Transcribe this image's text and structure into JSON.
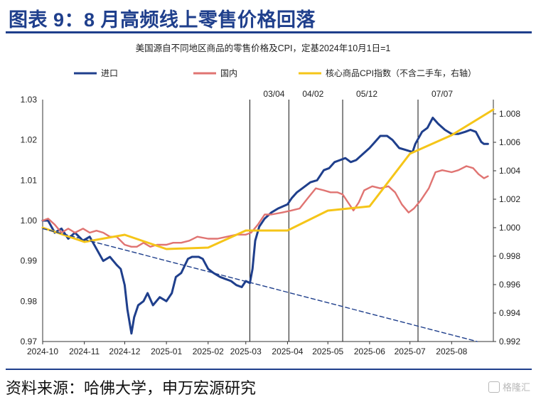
{
  "header": {
    "title": "图表 9：8 月高频线上零售价格回落"
  },
  "footer": {
    "source": "资料来源：哈佛大学，申万宏源研究",
    "watermark": "格隆汇"
  },
  "colors": {
    "accent": "#1f3f8c",
    "import": "#1f3f8c",
    "domestic": "#e07472",
    "cpi": "#f5c518",
    "trend": "#1f3f8c"
  },
  "chart_data": {
    "type": "line",
    "title": "美国源自不同地区商品的零售价格及CPI，定基2024年10月1日=1",
    "x_ticks": [
      "2024-10",
      "2024-11",
      "2024-12",
      "2025-01",
      "2025-02",
      "2025-03",
      "2025-04",
      "2025-05",
      "2025-06",
      "2025-07",
      "2025-08"
    ],
    "y_left": {
      "range": [
        0.97,
        1.03
      ],
      "ticks": [
        "0.97",
        "0.98",
        "0.99",
        "1.00",
        "1.01",
        "1.02",
        "1.03"
      ]
    },
    "y_right": {
      "range": [
        0.992,
        1.009
      ],
      "ticks": [
        "0.992",
        "0.994",
        "0.996",
        "0.998",
        "1.000",
        "1.002",
        "1.004",
        "1.006",
        "1.008"
      ]
    },
    "legend_position": "top",
    "vlines": [
      {
        "date": "2025-03-04",
        "label": "03/04"
      },
      {
        "date": "2025-04-02",
        "label": "04/02"
      },
      {
        "date": "2025-05-12",
        "label": "05/12"
      },
      {
        "date": "2025-07-07",
        "label": "07/07"
      }
    ],
    "series": [
      {
        "name": "进口",
        "axis": "left",
        "color": "#1f3f8c",
        "points": [
          [
            "2024-10-01",
            1.0
          ],
          [
            "2024-10-05",
            1.0
          ],
          [
            "2024-10-10",
            0.997
          ],
          [
            "2024-10-15",
            0.998
          ],
          [
            "2024-10-20",
            0.9955
          ],
          [
            "2024-10-25",
            0.997
          ],
          [
            "2024-10-31",
            0.995
          ],
          [
            "2024-11-05",
            0.996
          ],
          [
            "2024-11-10",
            0.993
          ],
          [
            "2024-11-15",
            0.99
          ],
          [
            "2024-11-20",
            0.991
          ],
          [
            "2024-11-25",
            0.989
          ],
          [
            "2024-11-28",
            0.988
          ],
          [
            "2024-12-01",
            0.984
          ],
          [
            "2024-12-03",
            0.978
          ],
          [
            "2024-12-06",
            0.972
          ],
          [
            "2024-12-08",
            0.976
          ],
          [
            "2024-12-11",
            0.979
          ],
          [
            "2024-12-15",
            0.98
          ],
          [
            "2024-12-18",
            0.982
          ],
          [
            "2024-12-22",
            0.979
          ],
          [
            "2024-12-27",
            0.981
          ],
          [
            "2025-01-01",
            0.98
          ],
          [
            "2025-01-05",
            0.982
          ],
          [
            "2025-01-08",
            0.986
          ],
          [
            "2025-01-12",
            0.987
          ],
          [
            "2025-01-17",
            0.9905
          ],
          [
            "2025-01-20",
            0.991
          ],
          [
            "2025-01-25",
            0.991
          ],
          [
            "2025-01-28",
            0.9905
          ],
          [
            "2025-02-01",
            0.988
          ],
          [
            "2025-02-05",
            0.987
          ],
          [
            "2025-02-10",
            0.986
          ],
          [
            "2025-02-14",
            0.9855
          ],
          [
            "2025-02-18",
            0.985
          ],
          [
            "2025-02-22",
            0.984
          ],
          [
            "2025-02-26",
            0.9835
          ],
          [
            "2025-03-01",
            0.985
          ],
          [
            "2025-03-04",
            0.9845
          ],
          [
            "2025-03-06",
            0.988
          ],
          [
            "2025-03-08",
            0.995
          ],
          [
            "2025-03-11",
            0.9985
          ],
          [
            "2025-03-15",
            1.0005
          ],
          [
            "2025-03-20",
            1.002
          ],
          [
            "2025-03-25",
            1.003
          ],
          [
            "2025-04-01",
            1.004
          ],
          [
            "2025-04-04",
            1.0055
          ],
          [
            "2025-04-08",
            1.007
          ],
          [
            "2025-04-12",
            1.008
          ],
          [
            "2025-04-18",
            1.0095
          ],
          [
            "2025-04-23",
            1.01
          ],
          [
            "2025-04-28",
            1.0125
          ],
          [
            "2025-05-02",
            1.013
          ],
          [
            "2025-05-06",
            1.0145
          ],
          [
            "2025-05-10",
            1.015
          ],
          [
            "2025-05-14",
            1.0155
          ],
          [
            "2025-05-18",
            1.0145
          ],
          [
            "2025-05-22",
            1.015
          ],
          [
            "2025-05-27",
            1.0165
          ],
          [
            "2025-06-01",
            1.018
          ],
          [
            "2025-06-05",
            1.0195
          ],
          [
            "2025-06-09",
            1.021
          ],
          [
            "2025-06-14",
            1.021
          ],
          [
            "2025-06-18",
            1.02
          ],
          [
            "2025-06-23",
            1.018
          ],
          [
            "2025-06-28",
            1.0175
          ],
          [
            "2025-07-03",
            1.017
          ],
          [
            "2025-07-05",
            1.019
          ],
          [
            "2025-07-10",
            1.022
          ],
          [
            "2025-07-14",
            1.023
          ],
          [
            "2025-07-18",
            1.0255
          ],
          [
            "2025-07-22",
            1.024
          ],
          [
            "2025-07-27",
            1.0225
          ],
          [
            "2025-08-01",
            1.0215
          ],
          [
            "2025-08-06",
            1.0215
          ],
          [
            "2025-08-11",
            1.022
          ],
          [
            "2025-08-15",
            1.0225
          ],
          [
            "2025-08-19",
            1.022
          ],
          [
            "2025-08-23",
            1.0195
          ],
          [
            "2025-08-25",
            1.019
          ],
          [
            "2025-08-28",
            1.019
          ]
        ]
      },
      {
        "name": "国内",
        "axis": "left",
        "color": "#e07472",
        "points": [
          [
            "2024-10-01",
            1.0
          ],
          [
            "2024-10-05",
            1.0005
          ],
          [
            "2024-10-10",
            0.999
          ],
          [
            "2024-10-15",
            0.997
          ],
          [
            "2024-10-20",
            0.998
          ],
          [
            "2024-10-25",
            0.997
          ],
          [
            "2024-10-31",
            0.998
          ],
          [
            "2024-11-05",
            0.997
          ],
          [
            "2024-11-10",
            0.9975
          ],
          [
            "2024-11-15",
            0.997
          ],
          [
            "2024-11-20",
            0.996
          ],
          [
            "2024-11-25",
            0.996
          ],
          [
            "2024-12-01",
            0.994
          ],
          [
            "2024-12-06",
            0.9935
          ],
          [
            "2024-12-10",
            0.9935
          ],
          [
            "2024-12-15",
            0.9945
          ],
          [
            "2024-12-20",
            0.9935
          ],
          [
            "2024-12-25",
            0.994
          ],
          [
            "2025-01-01",
            0.994
          ],
          [
            "2025-01-06",
            0.9945
          ],
          [
            "2025-01-12",
            0.9945
          ],
          [
            "2025-01-18",
            0.995
          ],
          [
            "2025-01-24",
            0.996
          ],
          [
            "2025-02-01",
            0.9955
          ],
          [
            "2025-02-08",
            0.9955
          ],
          [
            "2025-02-15",
            0.996
          ],
          [
            "2025-02-22",
            0.9965
          ],
          [
            "2025-03-01",
            0.9965
          ],
          [
            "2025-03-05",
            0.997
          ],
          [
            "2025-03-10",
            0.999
          ],
          [
            "2025-03-15",
            1.0015
          ],
          [
            "2025-03-20",
            1.0015
          ],
          [
            "2025-03-28",
            1.002
          ],
          [
            "2025-04-04",
            1.0025
          ],
          [
            "2025-04-10",
            1.003
          ],
          [
            "2025-04-16",
            1.0055
          ],
          [
            "2025-04-22",
            1.008
          ],
          [
            "2025-04-28",
            1.0075
          ],
          [
            "2025-05-03",
            1.007
          ],
          [
            "2025-05-08",
            1.007
          ],
          [
            "2025-05-12",
            1.0065
          ],
          [
            "2025-05-16",
            1.0045
          ],
          [
            "2025-05-20",
            1.0025
          ],
          [
            "2025-05-24",
            1.0045
          ],
          [
            "2025-05-28",
            1.0075
          ],
          [
            "2025-06-03",
            1.0085
          ],
          [
            "2025-06-09",
            1.008
          ],
          [
            "2025-06-15",
            1.0085
          ],
          [
            "2025-06-20",
            1.007
          ],
          [
            "2025-06-25",
            1.004
          ],
          [
            "2025-06-30",
            1.002
          ],
          [
            "2025-07-04",
            1.003
          ],
          [
            "2025-07-09",
            1.005
          ],
          [
            "2025-07-15",
            1.008
          ],
          [
            "2025-07-20",
            1.012
          ],
          [
            "2025-07-25",
            1.0125
          ],
          [
            "2025-08-01",
            1.012
          ],
          [
            "2025-08-06",
            1.0125
          ],
          [
            "2025-08-12",
            1.0135
          ],
          [
            "2025-08-17",
            1.013
          ],
          [
            "2025-08-21",
            1.0115
          ],
          [
            "2025-08-25",
            1.0105
          ],
          [
            "2025-08-28",
            1.011
          ]
        ]
      },
      {
        "name": "核心商品CPI指数（不含二手车，右轴）",
        "axis": "right",
        "color": "#f5c518",
        "points": [
          [
            "2024-10-01",
            1.0
          ],
          [
            "2024-11-01",
            0.999
          ],
          [
            "2024-12-01",
            0.9995
          ],
          [
            "2025-01-01",
            0.9985
          ],
          [
            "2025-02-01",
            0.9986
          ],
          [
            "2025-03-01",
            0.9998
          ],
          [
            "2025-04-01",
            0.9998
          ],
          [
            "2025-05-01",
            1.0012
          ],
          [
            "2025-06-01",
            1.0015
          ],
          [
            "2025-07-01",
            1.0052
          ],
          [
            "2025-08-01",
            1.0065
          ],
          [
            "2025-09-01",
            1.0083
          ]
        ]
      },
      {
        "name": "trend",
        "axis": "left",
        "color": "#1f3f8c",
        "dashed": true,
        "points": [
          [
            "2024-10-01",
            0.998
          ],
          [
            "2025-08-20",
            0.97
          ]
        ]
      }
    ]
  }
}
